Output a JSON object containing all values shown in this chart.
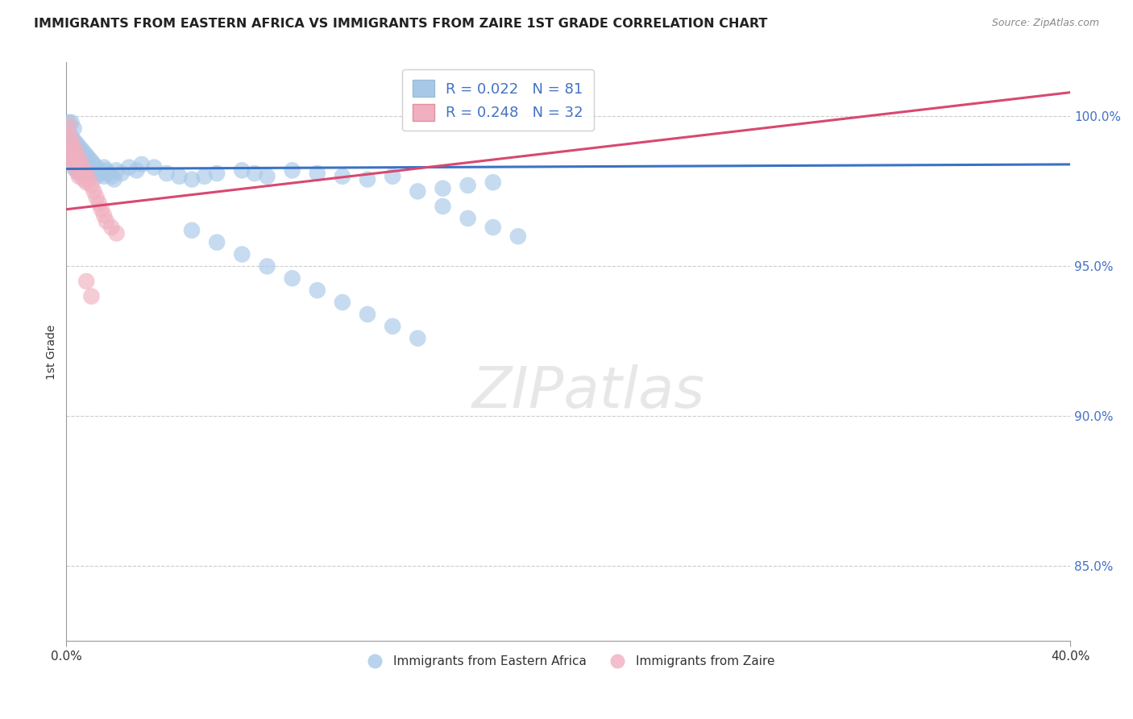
{
  "title": "IMMIGRANTS FROM EASTERN AFRICA VS IMMIGRANTS FROM ZAIRE 1ST GRADE CORRELATION CHART",
  "source": "Source: ZipAtlas.com",
  "ylabel": "1st Grade",
  "x_min": 0.0,
  "x_max": 0.4,
  "y_min": 0.825,
  "y_max": 1.018,
  "R_blue": 0.022,
  "N_blue": 81,
  "R_pink": 0.248,
  "N_pink": 32,
  "blue_color": "#a8c8e8",
  "pink_color": "#f0b0c0",
  "trend_blue": "#3a72c4",
  "trend_pink": "#d84870",
  "legend_label_blue": "Immigrants from Eastern Africa",
  "legend_label_pink": "Immigrants from Zaire",
  "blue_trend_x": [
    0.0,
    0.4
  ],
  "blue_trend_y": [
    0.9825,
    0.984
  ],
  "pink_trend_x": [
    0.0,
    0.4
  ],
  "pink_trend_y": [
    0.969,
    1.008
  ],
  "blue_scatter_x": [
    0.001,
    0.001,
    0.002,
    0.002,
    0.002,
    0.002,
    0.002,
    0.003,
    0.003,
    0.003,
    0.003,
    0.003,
    0.004,
    0.004,
    0.004,
    0.004,
    0.005,
    0.005,
    0.005,
    0.005,
    0.006,
    0.006,
    0.006,
    0.007,
    0.007,
    0.007,
    0.008,
    0.008,
    0.009,
    0.009,
    0.01,
    0.01,
    0.011,
    0.011,
    0.012,
    0.012,
    0.013,
    0.014,
    0.015,
    0.015,
    0.016,
    0.017,
    0.018,
    0.019,
    0.02,
    0.022,
    0.025,
    0.028,
    0.03,
    0.035,
    0.04,
    0.045,
    0.05,
    0.055,
    0.06,
    0.07,
    0.075,
    0.08,
    0.09,
    0.1,
    0.11,
    0.12,
    0.13,
    0.14,
    0.15,
    0.16,
    0.17,
    0.05,
    0.06,
    0.07,
    0.08,
    0.09,
    0.1,
    0.11,
    0.12,
    0.13,
    0.14,
    0.15,
    0.16,
    0.17,
    0.18
  ],
  "blue_scatter_y": [
    0.998,
    0.995,
    0.993,
    0.99,
    0.988,
    0.985,
    0.998,
    0.992,
    0.989,
    0.986,
    0.983,
    0.996,
    0.991,
    0.988,
    0.985,
    0.982,
    0.99,
    0.987,
    0.984,
    0.981,
    0.989,
    0.986,
    0.983,
    0.988,
    0.985,
    0.982,
    0.987,
    0.984,
    0.986,
    0.983,
    0.985,
    0.982,
    0.984,
    0.981,
    0.983,
    0.98,
    0.982,
    0.981,
    0.98,
    0.983,
    0.982,
    0.981,
    0.98,
    0.979,
    0.982,
    0.981,
    0.983,
    0.982,
    0.984,
    0.983,
    0.981,
    0.98,
    0.979,
    0.98,
    0.981,
    0.982,
    0.981,
    0.98,
    0.982,
    0.981,
    0.98,
    0.979,
    0.98,
    0.975,
    0.976,
    0.977,
    0.978,
    0.962,
    0.958,
    0.954,
    0.95,
    0.946,
    0.942,
    0.938,
    0.934,
    0.93,
    0.926,
    0.97,
    0.966,
    0.963,
    0.96
  ],
  "pink_scatter_x": [
    0.001,
    0.001,
    0.002,
    0.002,
    0.002,
    0.003,
    0.003,
    0.003,
    0.004,
    0.004,
    0.004,
    0.005,
    0.005,
    0.005,
    0.006,
    0.006,
    0.007,
    0.007,
    0.008,
    0.008,
    0.009,
    0.01,
    0.011,
    0.012,
    0.013,
    0.014,
    0.015,
    0.016,
    0.018,
    0.02,
    0.008,
    0.01
  ],
  "pink_scatter_y": [
    0.997,
    0.994,
    0.992,
    0.989,
    0.986,
    0.99,
    0.987,
    0.984,
    0.988,
    0.985,
    0.982,
    0.986,
    0.983,
    0.98,
    0.984,
    0.981,
    0.982,
    0.979,
    0.981,
    0.978,
    0.979,
    0.977,
    0.975,
    0.973,
    0.971,
    0.969,
    0.967,
    0.965,
    0.963,
    0.961,
    0.945,
    0.94
  ]
}
